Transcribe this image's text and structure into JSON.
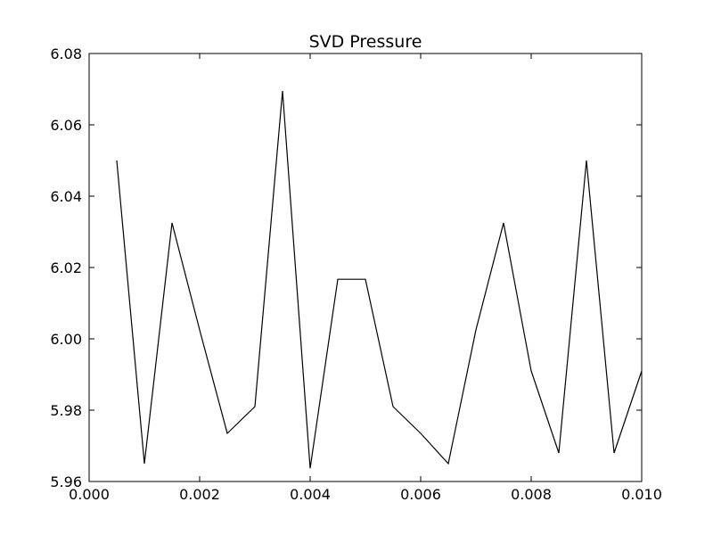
{
  "chart_data": {
    "type": "line",
    "title": "SVD Pressure",
    "xlabel": "",
    "ylabel": "",
    "xlim": [
      0.0,
      0.01
    ],
    "ylim": [
      5.96,
      6.08
    ],
    "grid": false,
    "x_ticks": [
      "0.000",
      "0.002",
      "0.004",
      "0.006",
      "0.008",
      "0.010"
    ],
    "y_ticks": [
      "5.96",
      "5.98",
      "6.00",
      "6.02",
      "6.04",
      "6.06",
      "6.08"
    ],
    "line_color": "#000000",
    "series": [
      {
        "x": [
          0.0005,
          0.001,
          0.0015,
          0.002,
          0.0025,
          0.003,
          0.0035,
          0.004,
          0.0045,
          0.005,
          0.0055,
          0.006,
          0.0065,
          0.007,
          0.0075,
          0.008,
          0.0085,
          0.009,
          0.0095,
          0.01
        ],
        "y": [
          6.05,
          5.965,
          6.0325,
          6.0025,
          5.9735,
          5.981,
          6.0695,
          5.9637,
          6.0167,
          6.0167,
          5.981,
          5.9735,
          5.965,
          6.0025,
          6.0325,
          5.991,
          5.968,
          6.05,
          5.968,
          5.991
        ]
      }
    ]
  }
}
